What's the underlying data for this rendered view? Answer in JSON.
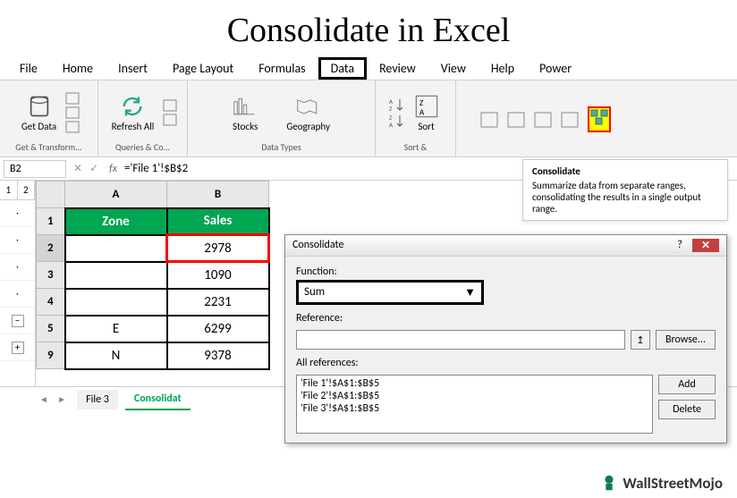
{
  "page_title": "Consolidate in Excel",
  "ribbon": {
    "tabs": [
      "File",
      "Home",
      "Insert",
      "Page Layout",
      "Formulas",
      "Data",
      "Review",
      "View",
      "Help",
      "Power"
    ],
    "highlighted_tab": "Data",
    "groups": {
      "get_transform": {
        "label": "Get & Transform...",
        "button": "Get Data"
      },
      "queries": {
        "label": "Queries & Co...",
        "button": "Refresh All"
      },
      "datatypes": {
        "label": "Data Types",
        "btn1": "Stocks",
        "btn2": "Geography"
      },
      "sort": {
        "label": "Sort &",
        "button": "Sort"
      }
    }
  },
  "tooltip": {
    "title": "Consolidate",
    "body": "Summarize data from separate ranges, consolidating the results in a single output range."
  },
  "formula_bar": {
    "namebox": "B2",
    "formula": "='File 1'!$B$2"
  },
  "sheet": {
    "outline_levels": [
      "1",
      "2"
    ],
    "columns": [
      "A",
      "B"
    ],
    "headers": [
      "Zone",
      "Sales"
    ],
    "rows": [
      {
        "num": "1",
        "zone": "Zone",
        "sales": "Sales",
        "is_header": true
      },
      {
        "num": "2",
        "zone": "",
        "sales": "2978",
        "selected": true
      },
      {
        "num": "3",
        "zone": "",
        "sales": "1090"
      },
      {
        "num": "4",
        "zone": "",
        "sales": "2231"
      },
      {
        "num": "5",
        "zone": "E",
        "sales": "6299"
      },
      {
        "num": "9",
        "zone": "N",
        "sales": "9378"
      }
    ],
    "outline_buttons": [
      "·",
      "·",
      "·",
      "·",
      "−",
      "+"
    ],
    "tabs": [
      "File 3",
      "Consolidat"
    ]
  },
  "dialog": {
    "title": "Consolidate",
    "function_label": "Function:",
    "function_value": "Sum",
    "reference_label": "Reference:",
    "reference_value": "",
    "allrefs_label": "All references:",
    "references": [
      "'File 1'!$A$1:$B$5",
      "'File 2'!$A$1:$B$5",
      "'File 3'!$A$1:$B$5"
    ],
    "btn_browse": "Browse...",
    "btn_add": "Add",
    "btn_delete": "Delete"
  },
  "logo": {
    "text": "WallStreetMojo",
    "color": "#0d7a5f"
  }
}
